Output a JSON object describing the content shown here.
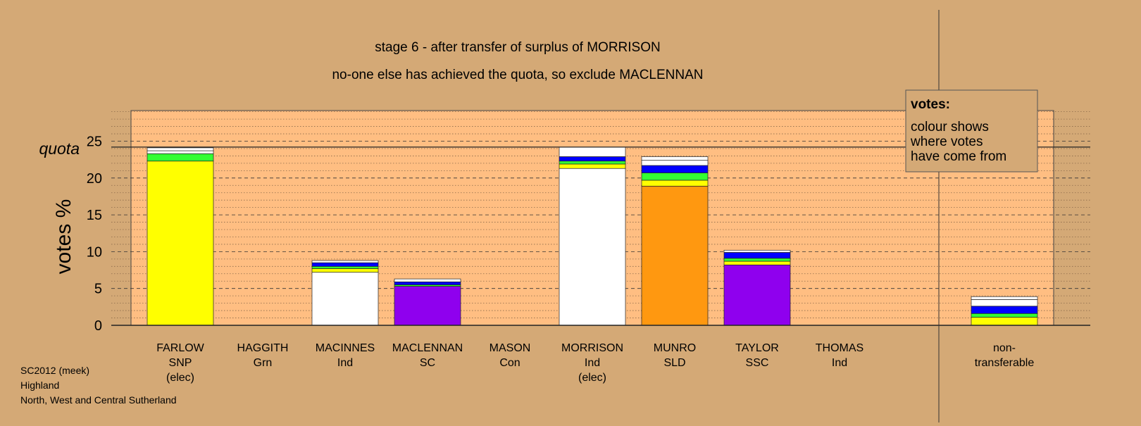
{
  "chart_data": {
    "type": "bar",
    "stacked": true,
    "title": "stage 6 - after transfer of surplus of MORRISON",
    "subtitle": "no-one else has achieved the quota, so exclude MACLENNAN",
    "ylabel": "votes %",
    "ylim": [
      0,
      29
    ],
    "yticks": [
      "0",
      "5",
      "10",
      "15",
      "20",
      "25"
    ],
    "quota": {
      "label": "quota",
      "value": 24.2
    },
    "legend": {
      "title": "votes:",
      "lines": [
        "colour shows",
        "where votes",
        "have come from"
      ],
      "position": "top-right"
    },
    "candidates": [
      {
        "name": "FARLOW",
        "party": "SNP",
        "note": "(elec)",
        "segments": [
          {
            "color": "#ffff00",
            "value": 22.3
          },
          {
            "color": "#33ff33",
            "value": 1.0
          },
          {
            "color": "#ffffff",
            "value": 0.4
          },
          {
            "color": "#ffffff",
            "value": 0.4
          }
        ]
      },
      {
        "name": "HAGGITH",
        "party": "Grn",
        "note": "",
        "segments": []
      },
      {
        "name": "MACINNES",
        "party": "Ind",
        "note": "",
        "segments": [
          {
            "color": "#ffffff",
            "value": 7.2
          },
          {
            "color": "#ffff00",
            "value": 0.5
          },
          {
            "color": "#33ff33",
            "value": 0.3
          },
          {
            "color": "#0000ff",
            "value": 0.5
          },
          {
            "color": "#ffffff",
            "value": 0.3
          }
        ]
      },
      {
        "name": "MACLENNAN",
        "party": "SC",
        "note": "",
        "segments": [
          {
            "color": "#8f00ee",
            "value": 5.3
          },
          {
            "color": "#33ff33",
            "value": 0.2
          },
          {
            "color": "#0000ff",
            "value": 0.4
          },
          {
            "color": "#ffffff",
            "value": 0.4
          }
        ]
      },
      {
        "name": "MASON",
        "party": "Con",
        "note": "",
        "segments": []
      },
      {
        "name": "MORRISON",
        "party": "Ind",
        "note": "(elec)",
        "segments": [
          {
            "color": "#ffffff",
            "value": 21.3
          },
          {
            "color": "#ffff00",
            "value": 0.6
          },
          {
            "color": "#33ff33",
            "value": 0.4
          },
          {
            "color": "#0000ff",
            "value": 0.6
          },
          {
            "color": "#ffffff",
            "value": 1.3
          }
        ]
      },
      {
        "name": "MUNRO",
        "party": "SLD",
        "note": "",
        "segments": [
          {
            "color": "#ff9810",
            "value": 18.9
          },
          {
            "color": "#ffff00",
            "value": 0.8
          },
          {
            "color": "#33ff33",
            "value": 1.0
          },
          {
            "color": "#0000ff",
            "value": 1.0
          },
          {
            "color": "#ffffff",
            "value": 0.7
          },
          {
            "color": "#ffffff",
            "value": 0.5
          }
        ]
      },
      {
        "name": "TAYLOR",
        "party": "SSC",
        "note": "",
        "segments": [
          {
            "color": "#8f00ee",
            "value": 8.2
          },
          {
            "color": "#ffff00",
            "value": 0.5
          },
          {
            "color": "#33ff33",
            "value": 0.4
          },
          {
            "color": "#0000ff",
            "value": 0.8
          },
          {
            "color": "#ffffff",
            "value": 0.3
          }
        ]
      },
      {
        "name": "THOMAS",
        "party": "Ind",
        "note": "",
        "segments": []
      }
    ],
    "nontransferable": {
      "label_lines": [
        "non-",
        "transferable"
      ],
      "segments": [
        {
          "color": "#ffff00",
          "value": 1.1
        },
        {
          "color": "#33ff33",
          "value": 0.5
        },
        {
          "color": "#0000ff",
          "value": 1.0
        },
        {
          "color": "#ffffff",
          "value": 0.9
        },
        {
          "color": "#ffffff",
          "value": 0.4
        }
      ]
    }
  },
  "footer": {
    "line1": "SC2012 (meek)",
    "line2": "Highland",
    "line3": "North, West and Central Sutherland"
  }
}
